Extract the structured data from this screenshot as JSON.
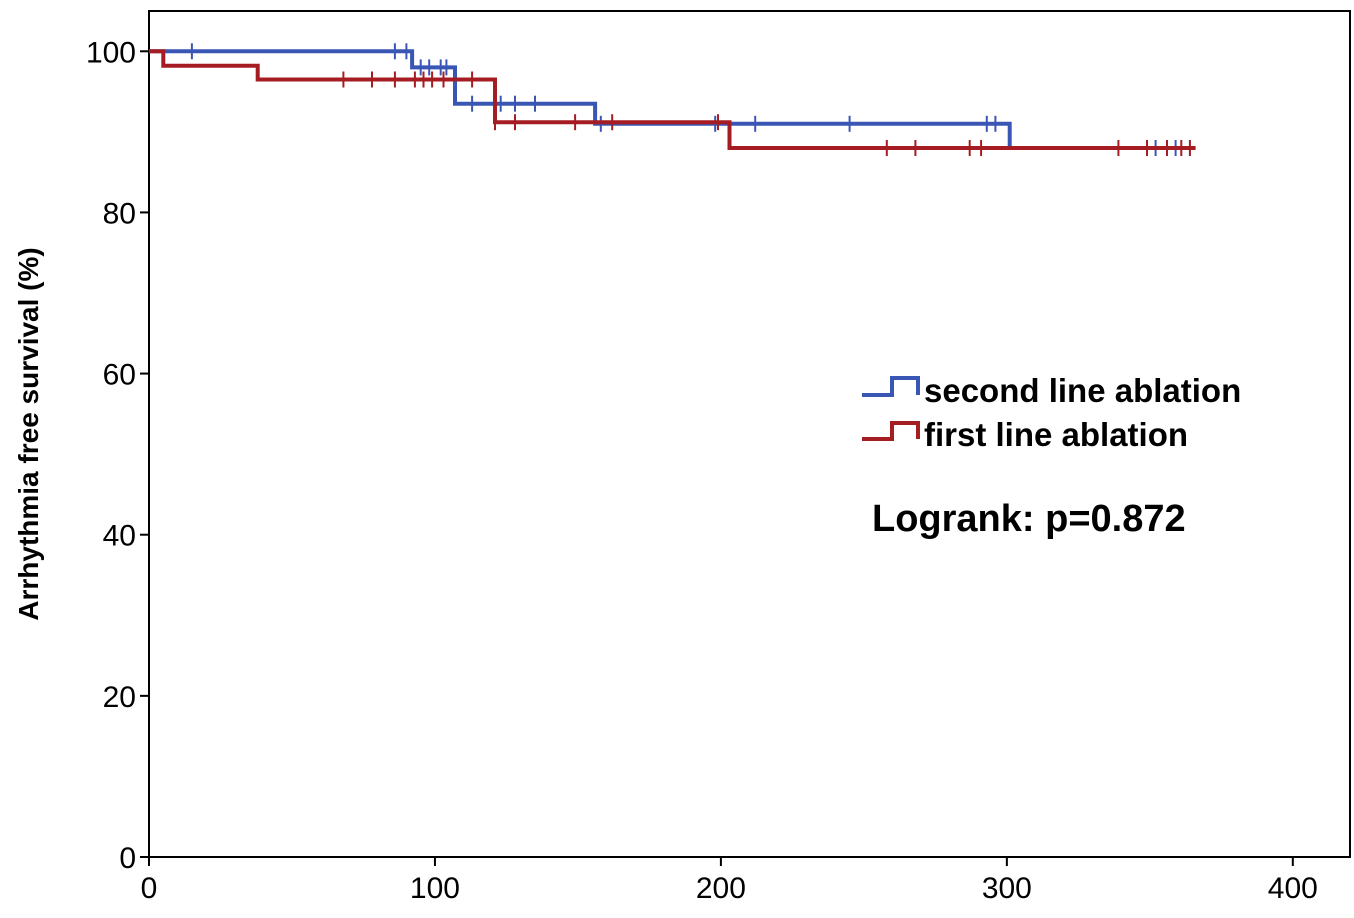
{
  "chart_data": {
    "type": "line",
    "subtype": "kaplan-meier",
    "title": "",
    "xlabel": "",
    "ylabel": "Arrhythmia free survival (%)",
    "xlim": [
      0,
      420
    ],
    "ylim": [
      0,
      105
    ],
    "xticks": [
      0,
      100,
      200,
      300,
      400
    ],
    "yticks": [
      0,
      20,
      40,
      60,
      80,
      100
    ],
    "grid": false,
    "legend_position": "center-right",
    "annotation": "Logrank: p=0.872",
    "series": [
      {
        "name": "second line ablation",
        "color": "#3a56b4",
        "steps": [
          [
            0,
            100
          ],
          [
            92,
            100
          ],
          [
            92,
            98
          ],
          [
            107,
            98
          ],
          [
            107,
            93.5
          ],
          [
            156,
            93.5
          ],
          [
            156,
            91
          ],
          [
            301,
            91
          ],
          [
            301,
            88
          ],
          [
            364,
            88
          ]
        ],
        "censored": [
          [
            15,
            100
          ],
          [
            86,
            100
          ],
          [
            90,
            100
          ],
          [
            95,
            98
          ],
          [
            98,
            98
          ],
          [
            102,
            98
          ],
          [
            104,
            98
          ],
          [
            113,
            93.5
          ],
          [
            123,
            93.5
          ],
          [
            128,
            93.5
          ],
          [
            135,
            93.5
          ],
          [
            158,
            91
          ],
          [
            198,
            91
          ],
          [
            212,
            91
          ],
          [
            245,
            91
          ],
          [
            293,
            91
          ],
          [
            296,
            91
          ],
          [
            352,
            88
          ],
          [
            359,
            88
          ]
        ]
      },
      {
        "name": "first line ablation",
        "color": "#a51d22",
        "steps": [
          [
            0,
            100
          ],
          [
            5,
            100
          ],
          [
            5,
            98.2
          ],
          [
            38,
            98.2
          ],
          [
            38,
            96.5
          ],
          [
            121,
            96.5
          ],
          [
            121,
            91.2
          ],
          [
            203,
            91.2
          ],
          [
            203,
            88
          ],
          [
            366,
            88
          ]
        ],
        "censored": [
          [
            68,
            96.5
          ],
          [
            78,
            96.5
          ],
          [
            86,
            96.5
          ],
          [
            93,
            96.5
          ],
          [
            96,
            96.5
          ],
          [
            99,
            96.5
          ],
          [
            103,
            96.5
          ],
          [
            113,
            96.5
          ],
          [
            121,
            91.2
          ],
          [
            128,
            91.2
          ],
          [
            149,
            91.2
          ],
          [
            162,
            91.2
          ],
          [
            199,
            91.2
          ],
          [
            258,
            88
          ],
          [
            268,
            88
          ],
          [
            287,
            88
          ],
          [
            291,
            88
          ],
          [
            339,
            88
          ],
          [
            349,
            88
          ],
          [
            356,
            88
          ],
          [
            361,
            88
          ],
          [
            364,
            88
          ]
        ]
      }
    ]
  }
}
